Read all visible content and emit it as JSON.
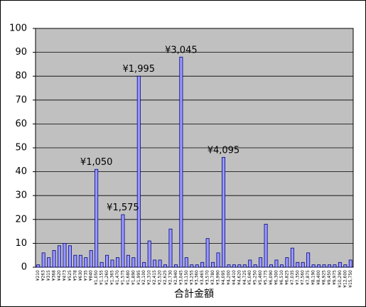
{
  "chart_data": {
    "type": "bar",
    "x_label": "合計金額",
    "categories": [
      "¥210",
      "¥263",
      "¥315",
      "¥368",
      "¥420",
      "¥473",
      "¥525",
      "¥578",
      "¥630",
      "¥735",
      "¥840",
      "¥1,050",
      "¥1,155",
      "¥1,260",
      "¥1,365",
      "¥1,470",
      "¥1,575",
      "¥1,680",
      "¥1,890",
      "¥1,995",
      "¥2,100",
      "¥2,310",
      "¥2,415",
      "¥2,520",
      "¥2,625",
      "¥2,730",
      "¥2,940",
      "¥3,045",
      "¥3,150",
      "¥3,255",
      "¥3,360",
      "¥3,465",
      "¥3,570",
      "¥3,780",
      "¥3,990",
      "¥4,095",
      "¥4,200",
      "¥4,410",
      "¥4,620",
      "¥4,725",
      "¥5,040",
      "¥5,250",
      "¥5,460",
      "¥5,775",
      "¥6,090",
      "¥6,300",
      "¥6,510",
      "¥6,825",
      "¥7,035",
      "¥7,350",
      "¥7,560",
      "¥7,875",
      "¥8,190",
      "¥8,400",
      "¥8,925",
      "¥9,450",
      "¥9,975",
      "¥10,290",
      "¥12,600",
      "¥15,750"
    ],
    "values": [
      1,
      6,
      4,
      7,
      9,
      10,
      9,
      5,
      5,
      4,
      7,
      41,
      2,
      5,
      3,
      4,
      22,
      5,
      4,
      80,
      2,
      11,
      3,
      3,
      1,
      16,
      1,
      88,
      4,
      1,
      1,
      2,
      12,
      2,
      6,
      46,
      1,
      1,
      1,
      1,
      3,
      1,
      4,
      18,
      1,
      3,
      1,
      4,
      8,
      2,
      2,
      6,
      1,
      1,
      1,
      1,
      1,
      2,
      1,
      3
    ],
    "annotations": [
      "¥1,050",
      "¥1,575",
      "¥1,995",
      "¥3,045",
      "¥4,095"
    ],
    "color": "#9999ff",
    "edge_color": "#000080",
    "plot_background": "#c0c0c0",
    "ylim": [
      0,
      100
    ],
    "yticks": [
      0,
      10,
      20,
      30,
      40,
      50,
      60,
      70,
      80,
      90,
      100
    ],
    "grid": true
  }
}
